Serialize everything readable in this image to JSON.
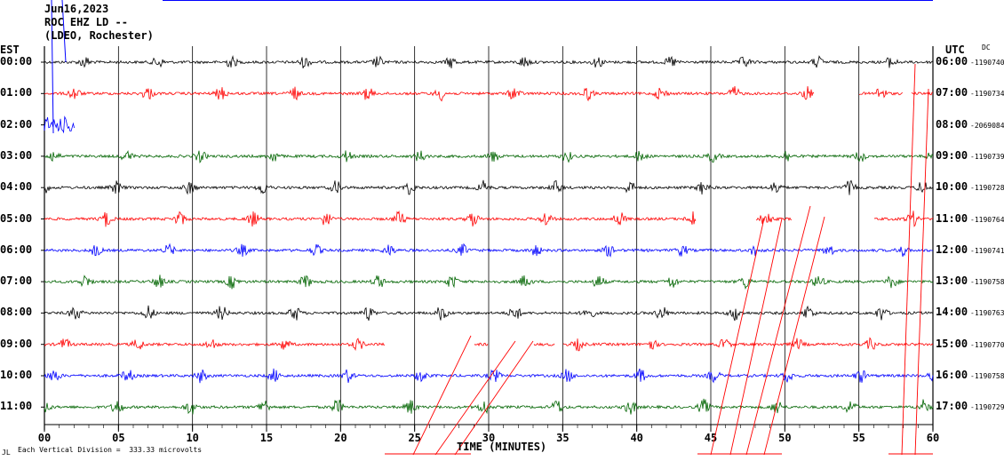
{
  "header": {
    "date": "Jun16,2023",
    "station": "ROC EHZ LD --",
    "location": "(LDEO, Rochester)"
  },
  "left_zone": "EST",
  "right_zone": "UTC",
  "dc_label": "DC",
  "footer": {
    "scale_note": "Each Vertical Division =  333.33 microvolts",
    "corner_mark": "JL"
  },
  "colors": {
    "black": "#000000",
    "red": "#ff0000",
    "blue": "#0000ff",
    "green": "#006400",
    "grid": "#000000"
  },
  "chart_data": {
    "type": "line",
    "title": "",
    "xlabel": "TIME (MINUTES)",
    "ylabel": "",
    "xlim": [
      0,
      60
    ],
    "x_ticks": [
      "00",
      "05",
      "10",
      "15",
      "20",
      "25",
      "30",
      "35",
      "40",
      "45",
      "50",
      "55",
      "60"
    ],
    "rows": [
      {
        "est": "00:00",
        "utc": "06:00",
        "dc": "-1190740",
        "color": "black"
      },
      {
        "est": "01:00",
        "utc": "07:00",
        "dc": "-1190734",
        "color": "red"
      },
      {
        "est": "02:00",
        "utc": "08:00",
        "dc": "-2069084",
        "color": "blue"
      },
      {
        "est": "03:00",
        "utc": "09:00",
        "dc": "-1190739",
        "color": "green"
      },
      {
        "est": "04:00",
        "utc": "10:00",
        "dc": "-1190728",
        "color": "black"
      },
      {
        "est": "05:00",
        "utc": "11:00",
        "dc": "-1190764",
        "color": "red"
      },
      {
        "est": "06:00",
        "utc": "12:00",
        "dc": "-1190741",
        "color": "blue"
      },
      {
        "est": "07:00",
        "utc": "13:00",
        "dc": "-1190758",
        "color": "green"
      },
      {
        "est": "08:00",
        "utc": "14:00",
        "dc": "-1190763",
        "color": "black"
      },
      {
        "est": "09:00",
        "utc": "15:00",
        "dc": "-1190770",
        "color": "red"
      },
      {
        "est": "10:00",
        "utc": "16:00",
        "dc": "-1190758",
        "color": "blue"
      },
      {
        "est": "11:00",
        "utc": "17:00",
        "dc": "-1190729",
        "color": "green"
      }
    ]
  }
}
